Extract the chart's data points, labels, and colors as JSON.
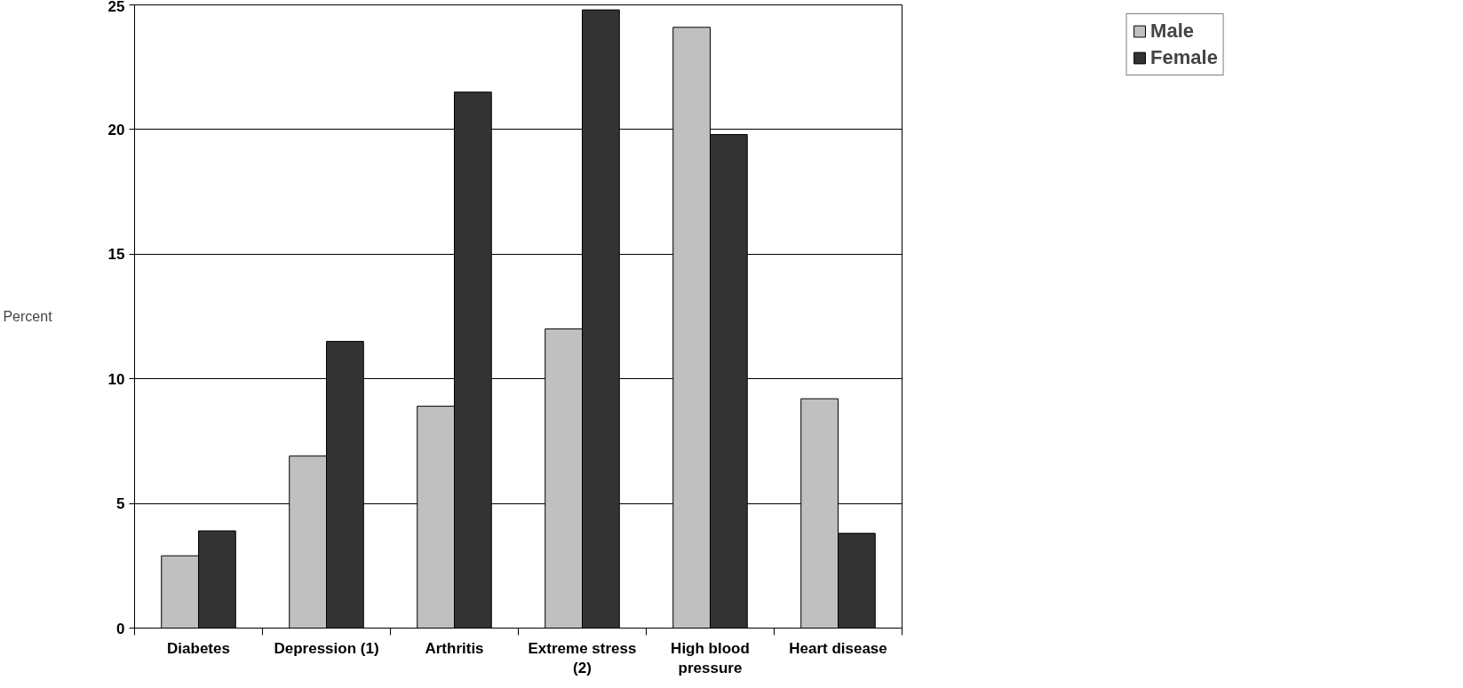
{
  "chart_data": {
    "type": "bar",
    "ylabel": "Percent",
    "categories": [
      "Diabetes",
      "Depression (1)",
      "Arthritis",
      "Extreme stress (2)",
      "High blood pressure",
      "Heart disease"
    ],
    "series": [
      {
        "name": "Male",
        "color": "#c0c0c0",
        "values": [
          2.9,
          6.9,
          8.9,
          12.0,
          24.1,
          9.2
        ]
      },
      {
        "name": "Female",
        "color": "#333333",
        "values": [
          3.9,
          11.5,
          21.5,
          24.8,
          19.8,
          3.8
        ]
      }
    ],
    "ylim": [
      0,
      25
    ],
    "yticks": [
      0,
      5,
      10,
      15,
      20,
      25
    ],
    "grid": "y",
    "legend": "top right"
  }
}
